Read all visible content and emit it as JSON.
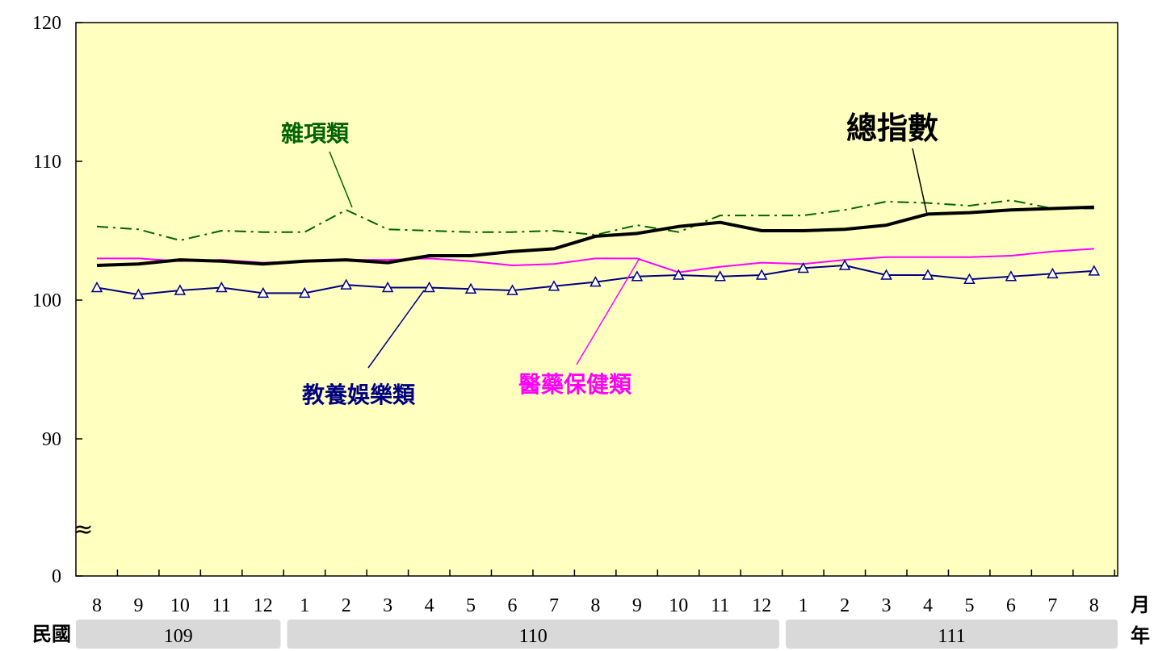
{
  "chart_data": {
    "type": "line",
    "ylim": [
      0,
      120
    ],
    "yticks": [
      "0",
      "90",
      "100",
      "110",
      "120"
    ],
    "axis_break_symbol": "≈",
    "categories": [
      "8",
      "9",
      "10",
      "11",
      "12",
      "1",
      "2",
      "3",
      "4",
      "5",
      "6",
      "7",
      "8",
      "9",
      "10",
      "11",
      "12",
      "1",
      "2",
      "3",
      "4",
      "5",
      "6",
      "7",
      "8"
    ],
    "x_unit_label": "月",
    "year_unit_label": "年",
    "era_label": "民國",
    "years": [
      {
        "label": "109",
        "start": 0,
        "end": 4
      },
      {
        "label": "110",
        "start": 5,
        "end": 16
      },
      {
        "label": "111",
        "start": 17,
        "end": 24
      }
    ],
    "grid": false,
    "background_color": "#FFFFC0",
    "series": [
      {
        "name": "總指數",
        "color": "#000000",
        "style": "solid-thick",
        "values": [
          102.5,
          102.6,
          102.9,
          102.8,
          102.6,
          102.8,
          102.9,
          102.7,
          103.2,
          103.2,
          103.5,
          103.7,
          104.6,
          104.8,
          105.3,
          105.6,
          105.0,
          105.0,
          105.1,
          105.4,
          106.2,
          106.3,
          106.5,
          106.6,
          106.7
        ]
      },
      {
        "name": "雜項類",
        "color": "#006400",
        "style": "dash-dot",
        "values": [
          105.3,
          105.1,
          104.3,
          105.0,
          104.9,
          104.9,
          106.5,
          105.1,
          105.0,
          104.9,
          104.9,
          105.0,
          104.7,
          105.4,
          104.9,
          106.1,
          106.1,
          106.1,
          106.5,
          107.1,
          107.0,
          106.8,
          107.2,
          106.6,
          106.6
        ]
      },
      {
        "name": "醫藥保健類",
        "color": "#FF00FF",
        "style": "solid-thin",
        "values": [
          103.0,
          103.0,
          102.8,
          102.9,
          102.7,
          102.8,
          102.9,
          102.9,
          103.0,
          102.8,
          102.5,
          102.6,
          103.0,
          103.0,
          102.0,
          102.4,
          102.7,
          102.6,
          102.9,
          103.1,
          103.1,
          103.1,
          103.2,
          103.5,
          103.7
        ]
      },
      {
        "name": "教養娛樂類",
        "color": "#000080",
        "style": "solid-triangle-markers",
        "values": [
          100.9,
          100.4,
          100.7,
          100.9,
          100.5,
          100.5,
          101.1,
          100.9,
          100.9,
          100.8,
          100.7,
          101.0,
          101.3,
          101.7,
          101.8,
          101.7,
          101.8,
          102.3,
          102.5,
          101.8,
          101.8,
          101.5,
          101.7,
          101.9,
          102.1
        ]
      }
    ]
  }
}
